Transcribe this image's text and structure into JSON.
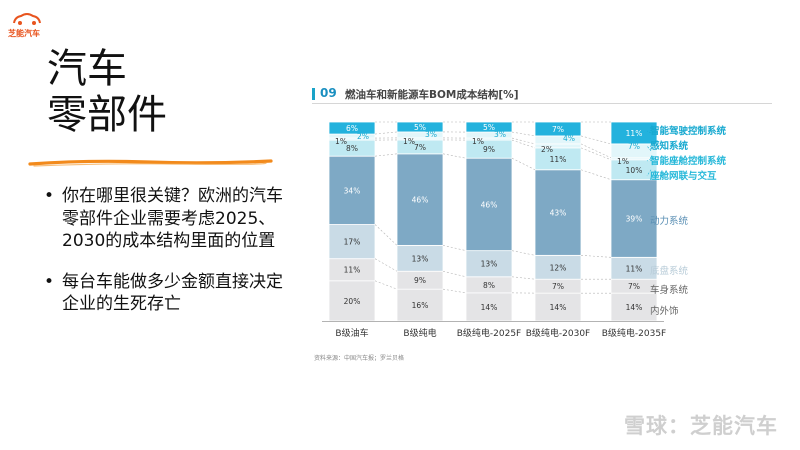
{
  "logo": {
    "text": "芝能汽车",
    "icon": "car-icon",
    "color": "#e8541e"
  },
  "slide": {
    "title_line1": "汽车",
    "title_line2": "零部件",
    "bullets": [
      "你在哪里很关键？欧洲的汽车零部件企业需要考虑2025、2030的成本结构里面的位置",
      "每台车能做多少金额直接决定企业的生死存亡"
    ]
  },
  "chart_header": {
    "number": "09",
    "title": "燃油车和新能源车BOM成本结构[%]"
  },
  "source": "资料来源：中国汽车报；罗兰贝格",
  "watermark": "雪球：芝能汽车",
  "chart_data": {
    "type": "bar",
    "stacked": true,
    "title": "燃油车和新能源车BOM成本结构[%]",
    "categories": [
      "B级油车",
      "B级纯电",
      "B级纯电-2025F",
      "B级纯电-2030F",
      "B级纯电-2035F"
    ],
    "ylim": [
      0,
      100
    ],
    "series": [
      {
        "name": "内外饰",
        "color": "#e4e4e6",
        "label_color": "#666666",
        "values": [
          20,
          16,
          14,
          14,
          14
        ]
      },
      {
        "name": "车身系统",
        "color": "#e4e4e6",
        "label_color": "#666666",
        "values": [
          11,
          9,
          8,
          7,
          7
        ]
      },
      {
        "name": "底盘系统",
        "color": "#c9dbe6",
        "label_color": "#b8ccd8",
        "values": [
          17,
          13,
          13,
          12,
          11
        ]
      },
      {
        "name": "动力系统",
        "color": "#7ea9c5",
        "label_color": "#5a8fb4",
        "values": [
          34,
          46,
          46,
          43,
          39
        ]
      },
      {
        "name": "座舱网联与交互",
        "color": "#bfe9f2",
        "label_color": "#26b8d9",
        "values": [
          8,
          7,
          9,
          11,
          10
        ]
      },
      {
        "name": "智能座舱控制系统",
        "color": "#e2f6fa",
        "label_color": "#26b8d9",
        "values": [
          1,
          1,
          1,
          2,
          1
        ]
      },
      {
        "name": "感知系统",
        "color": "#e2f6fa",
        "label_color": "#17a9d0",
        "values": [
          2,
          3,
          3,
          4,
          7
        ]
      },
      {
        "name": "智能驾驶控制系统",
        "color": "#23b2dd",
        "label_color": "#17a9d0",
        "values": [
          6,
          5,
          5,
          7,
          11
        ]
      }
    ]
  }
}
